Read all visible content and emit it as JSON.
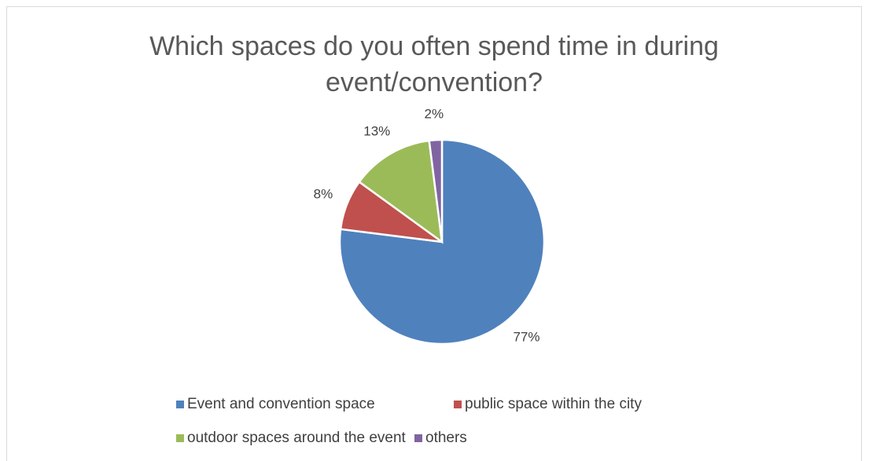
{
  "chart_data": {
    "type": "pie",
    "title": "Which spaces do you often spend time in during event/convention?",
    "categories": [
      "Event and convention space",
      "public space within the city",
      "outdoor spaces around the event",
      "others"
    ],
    "values": [
      77,
      8,
      13,
      2
    ],
    "value_labels": [
      "77%",
      "8%",
      "13%",
      "2%"
    ],
    "colors": [
      "#4f81bd",
      "#c0504d",
      "#9bbb59",
      "#8064a2"
    ],
    "legend": "bottom"
  }
}
